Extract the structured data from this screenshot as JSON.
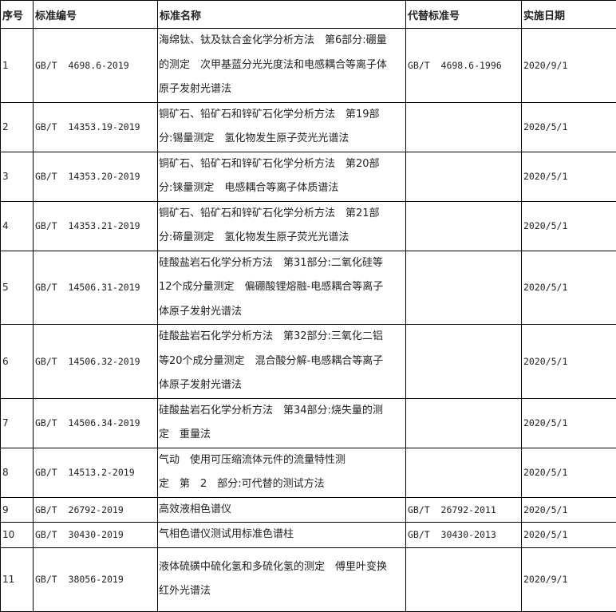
{
  "headers": [
    "序号",
    "标准编号",
    "标准名称",
    "代替标准号",
    "实施日期"
  ],
  "rows": [
    {
      "no": "1",
      "code": "GB/T  4698.6-2019",
      "name": [
        "海绵钛、钛及钛合金化学分析方法　第6部分:硼量",
        "的测定　次甲基蓝分光光度法和电感耦合等离子体",
        "原子发射光谱法"
      ],
      "replace": "GB/T  4698.6-1996",
      "date": "2020/9/1"
    },
    {
      "no": "2",
      "code": "GB/T  14353.19-2019",
      "name": [
        "铜矿石、铅矿石和锌矿石化学分析方法　第19部",
        "分:锡量测定　氢化物发生原子荧光光谱法"
      ],
      "replace": "",
      "date": "2020/5/1"
    },
    {
      "no": "3",
      "code": "GB/T  14353.20-2019",
      "name": [
        "铜矿石、铅矿石和锌矿石化学分析方法　第20部",
        "分:铼量测定　电感耦合等离子体质谱法"
      ],
      "replace": "",
      "date": "2020/5/1"
    },
    {
      "no": "4",
      "code": "GB/T  14353.21-2019",
      "name": [
        "铜矿石、铅矿石和锌矿石化学分析方法　第21部",
        "分:碲量测定　氢化物发生原子荧光光谱法"
      ],
      "replace": "",
      "date": "2020/5/1"
    },
    {
      "no": "5",
      "code": "GB/T  14506.31-2019",
      "name": [
        "硅酸盐岩石化学分析方法　第31部分:二氧化硅等",
        "12个成分量测定　偏硼酸锂熔融-电感耦合等离子",
        "体原子发射光谱法"
      ],
      "replace": "",
      "date": "2020/5/1"
    },
    {
      "no": "6",
      "code": "GB/T  14506.32-2019",
      "name": [
        "硅酸盐岩石化学分析方法　第32部分:三氧化二铝",
        "等20个成分量测定　混合酸分解-电感耦合等离子",
        "体原子发射光谱法"
      ],
      "replace": "",
      "date": "2020/5/1"
    },
    {
      "no": "7",
      "code": "GB/T  14506.34-2019",
      "name": [
        "硅酸盐岩石化学分析方法　第34部分:烧失量的测",
        "定　重量法"
      ],
      "replace": "",
      "date": "2020/5/1"
    },
    {
      "no": "8",
      "code": "GB/T  14513.2-2019",
      "name": [
        "气动　使用可压缩流体元件的流量特性测",
        "定　第　2　部分:可代替的测试方法"
      ],
      "replace": "",
      "date": "2020/5/1"
    },
    {
      "no": "9",
      "code": "GB/T  26792-2019",
      "name": [
        "高效液相色谱仪"
      ],
      "replace": "GB/T  26792-2011",
      "date": "2020/5/1"
    },
    {
      "no": "10",
      "code": "GB/T  30430-2019",
      "name": [
        "气相色谱仪测试用标准色谱柱"
      ],
      "replace": "GB/T  30430-2013",
      "date": "2020/5/1"
    },
    {
      "no": "11",
      "code": "GB/T  38056-2019",
      "name": [
        "液体硫磺中硫化氢和多硫化氢的测定　傅里叶变换",
        "红外光谱法"
      ],
      "replace": "",
      "date": "2020/9/1"
    }
  ]
}
